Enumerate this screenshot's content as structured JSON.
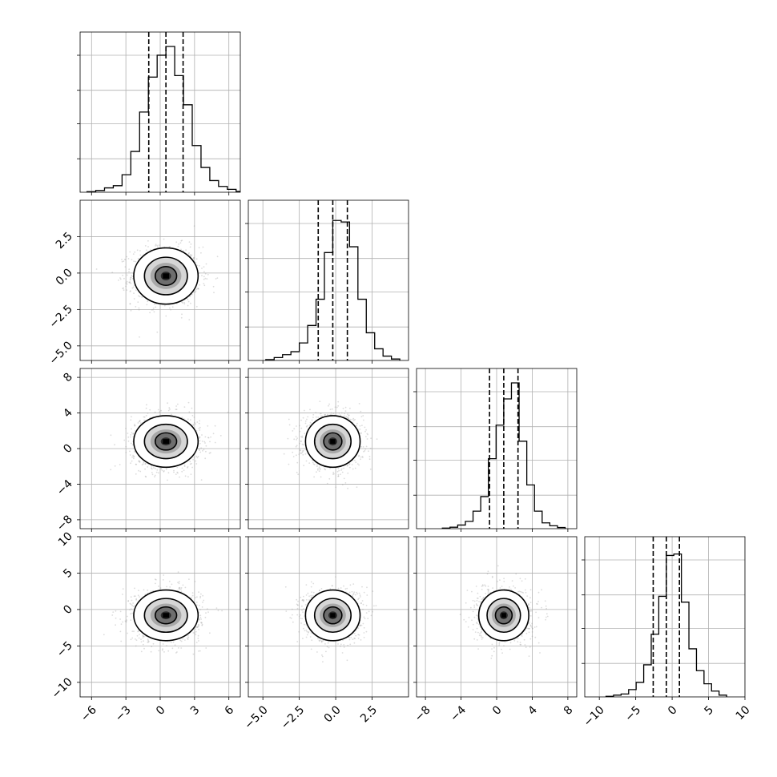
{
  "chart_data": {
    "type": "corner",
    "grid": true,
    "dims": [
      {
        "range": [
          -7,
          7
        ],
        "ticks": [
          -6,
          -3,
          0,
          3,
          6
        ],
        "tick_labels": [
          "−6",
          "−3",
          "0",
          "3",
          "6"
        ],
        "mean": 0.5,
        "sigma": 1.5,
        "quantiles": [
          -1.0,
          0.5,
          2.0
        ],
        "hist_values": [
          0.004,
          0.012,
          0.03,
          0.045,
          0.12,
          0.28,
          0.55,
          0.79,
          0.94,
          1.0,
          0.8,
          0.6,
          0.32,
          0.17,
          0.08,
          0.04,
          0.02,
          0.006
        ]
      },
      {
        "range": [
          -6,
          5
        ],
        "ticks": [
          -5.0,
          -2.5,
          0.0,
          2.5
        ],
        "tick_labels": [
          "−5.0",
          "−2.5",
          "0.0",
          "2.5"
        ],
        "mean": -0.2,
        "sigma": 1.0,
        "quantiles": [
          -1.2,
          -0.2,
          0.8
        ],
        "hist_values": [
          0.006,
          0.02,
          0.04,
          0.06,
          0.12,
          0.24,
          0.42,
          0.74,
          0.96,
          0.95,
          0.78,
          0.42,
          0.19,
          0.08,
          0.03,
          0.01
        ]
      },
      {
        "range": [
          -9,
          9
        ],
        "ticks": [
          -8,
          -4,
          0,
          4,
          8
        ],
        "tick_labels": [
          "−8",
          "−4",
          "0",
          "4",
          "8"
        ],
        "mean": 0.8,
        "sigma": 1.5,
        "quantiles": [
          -0.8,
          0.8,
          2.4
        ],
        "hist_values": [
          0.004,
          0.01,
          0.025,
          0.05,
          0.12,
          0.22,
          0.48,
          0.71,
          0.89,
          1.0,
          0.6,
          0.3,
          0.12,
          0.04,
          0.02,
          0.008
        ]
      },
      {
        "range": [
          -12,
          10
        ],
        "ticks": [
          -10,
          -5,
          0,
          5,
          10
        ],
        "tick_labels": [
          "−10",
          "−5",
          "0",
          "5",
          "10"
        ],
        "mean": -0.8,
        "sigma": 1.8,
        "quantiles": [
          -2.6,
          -0.8,
          1.0
        ],
        "hist_values": [
          0.004,
          0.012,
          0.02,
          0.05,
          0.1,
          0.22,
          0.43,
          0.69,
          0.97,
          0.98,
          0.65,
          0.33,
          0.18,
          0.09,
          0.04,
          0.012
        ]
      }
    ],
    "scatter": {
      "points_per_panel": 1200
    },
    "contour_sigmas": [
      0.5,
      1.0,
      1.5
    ]
  }
}
